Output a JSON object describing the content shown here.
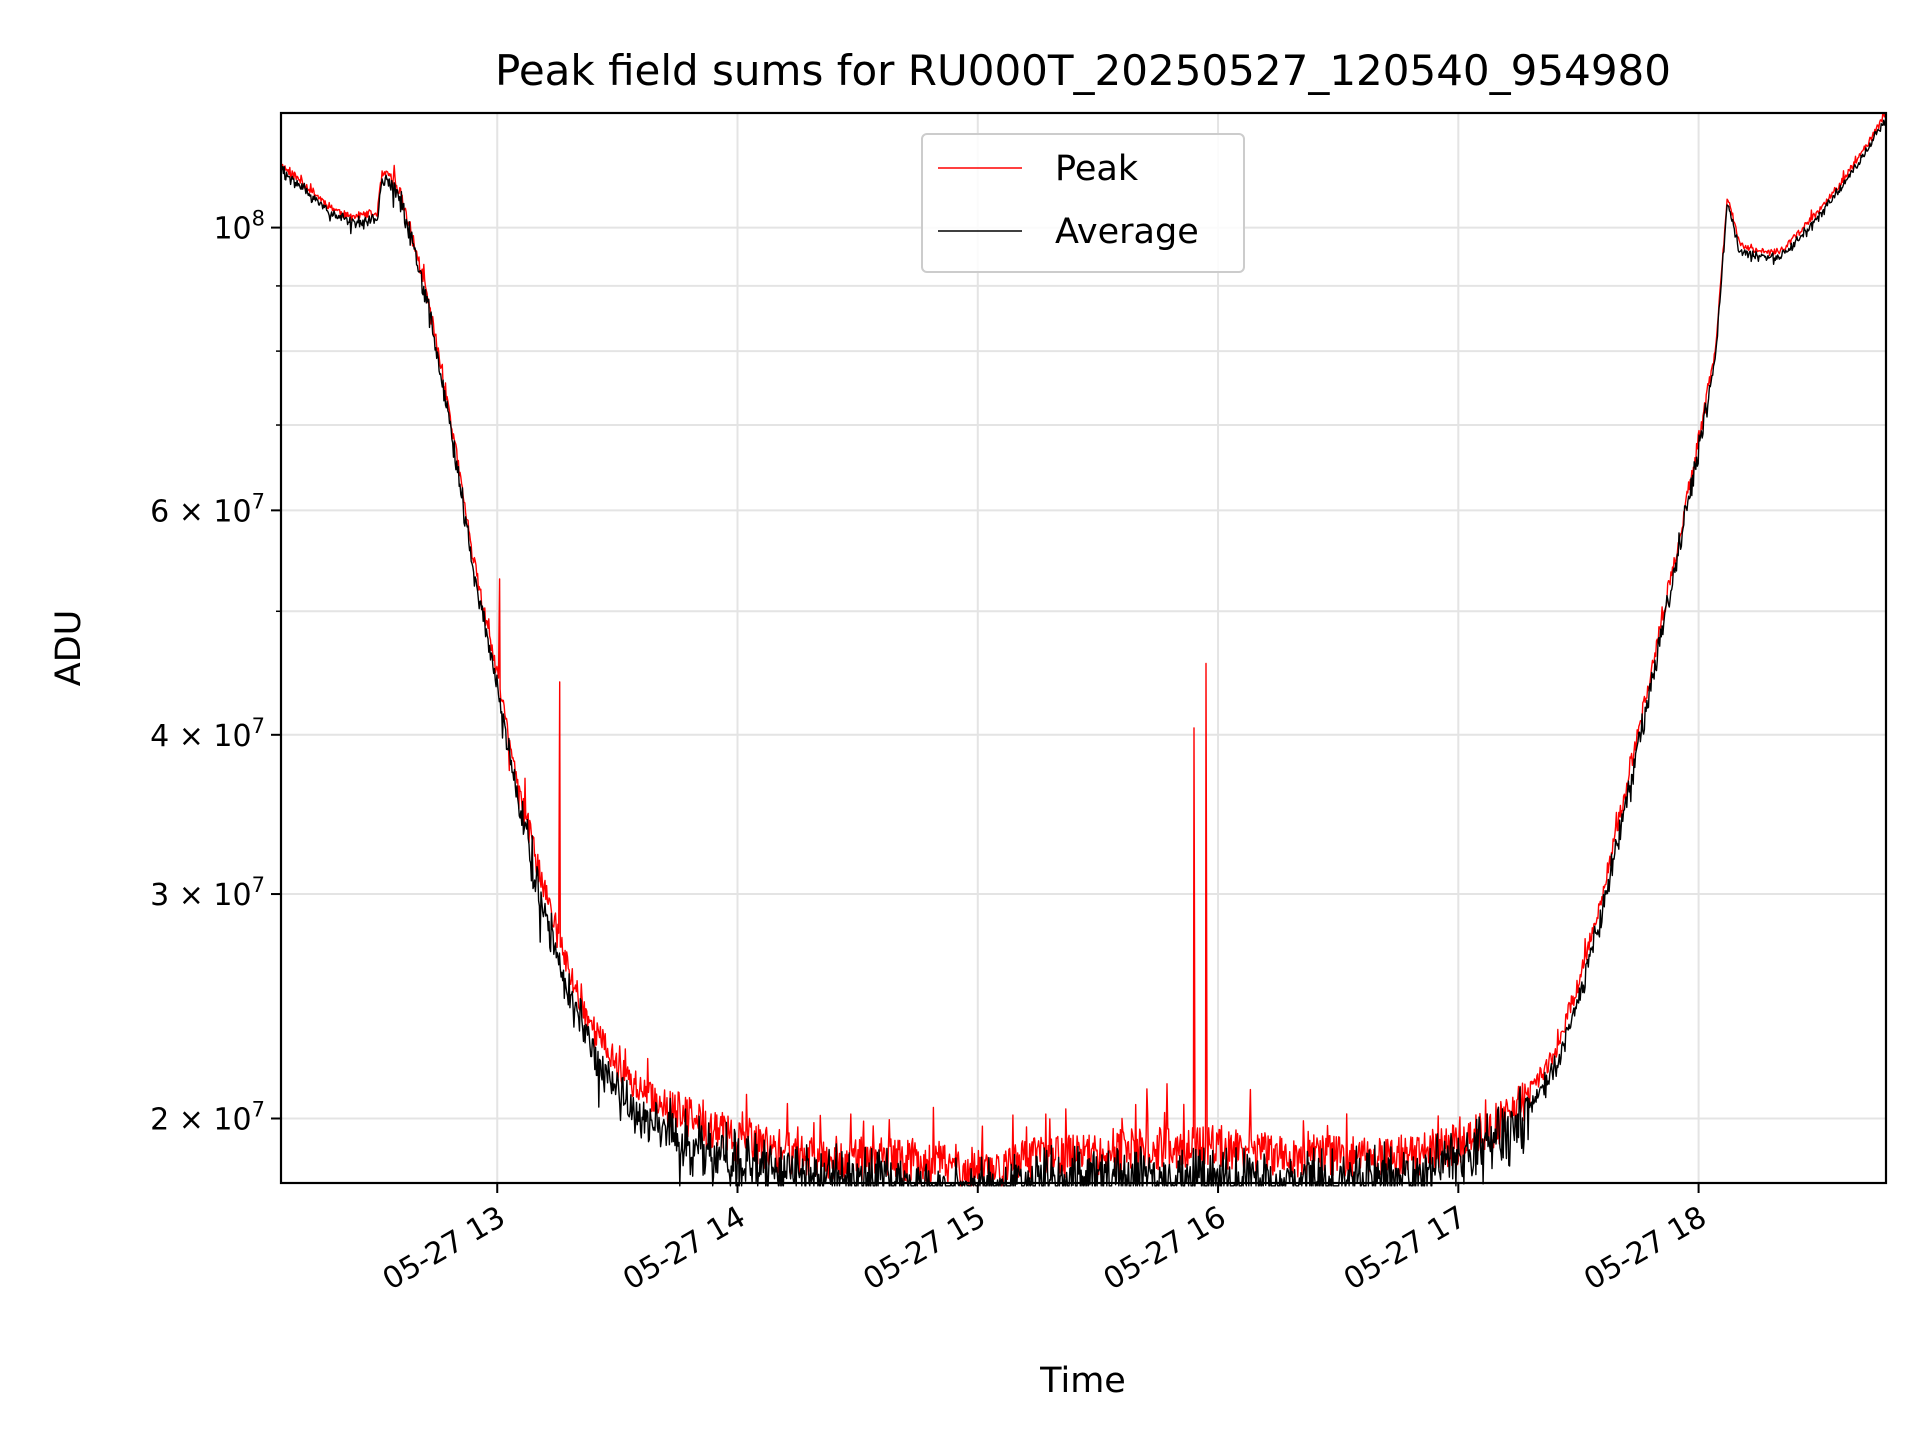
{
  "chart_data": {
    "type": "line",
    "title": "Peak field sums for RU000T_20250527_120540_954980",
    "xlabel": "Time",
    "ylabel": "ADU",
    "yscale": "log",
    "xlim": [
      12.1,
      18.78
    ],
    "ylim": [
      17800000,
      123000000
    ],
    "grid": true,
    "legend_position": "top-center",
    "x_ticks": [
      {
        "value": 13,
        "label": "05-27 13"
      },
      {
        "value": 14,
        "label": "05-27 14"
      },
      {
        "value": 15,
        "label": "05-27 15"
      },
      {
        "value": 16,
        "label": "05-27 16"
      },
      {
        "value": 17,
        "label": "05-27 17"
      },
      {
        "value": 18,
        "label": "05-27 18"
      }
    ],
    "y_ticks": [
      {
        "value": 100000000,
        "base": "10",
        "exp": "8"
      },
      {
        "value": 60000000,
        "base": "6 × 10",
        "exp": "7"
      },
      {
        "value": 40000000,
        "base": "4 × 10",
        "exp": "7"
      },
      {
        "value": 30000000,
        "base": "3 × 10",
        "exp": "7"
      },
      {
        "value": 20000000,
        "base": "2 × 10",
        "exp": "7"
      }
    ],
    "y_minor_ticks": [
      50000000,
      70000000,
      80000000,
      90000000
    ],
    "series": [
      {
        "name": "Peak",
        "color": "#ff0000",
        "noise": 0.04,
        "spikes": [
          [
            13.01,
            53000000
          ],
          [
            13.05,
            37500000
          ],
          [
            13.09,
            35000000
          ],
          [
            13.26,
            44000000
          ],
          [
            13.35,
            25500000
          ],
          [
            13.72,
            21000000
          ],
          [
            14.05,
            20000000
          ],
          [
            15.9,
            40500000
          ],
          [
            15.95,
            45500000
          ],
          [
            17.28,
            21000000
          ]
        ]
      },
      {
        "name": "Average",
        "color": "#000000",
        "noise": 0.055,
        "spikes": []
      }
    ],
    "baseline": {
      "x": [
        12.1,
        12.2,
        12.3,
        12.38,
        12.5,
        12.52,
        12.55,
        12.6,
        12.7,
        12.8,
        12.9,
        13.0,
        13.1,
        13.2,
        13.3,
        13.4,
        13.5,
        13.6,
        13.8,
        14.0,
        14.2,
        14.5,
        14.8,
        15.0,
        15.1,
        15.3,
        15.5,
        15.7,
        16.0,
        16.3,
        16.6,
        16.8,
        17.0,
        17.1,
        17.2,
        17.3,
        17.4,
        17.5,
        17.6,
        17.7,
        17.8,
        17.9,
        18.0,
        18.07,
        18.12,
        18.17,
        18.2,
        18.3,
        18.35,
        18.5,
        18.6,
        18.7,
        18.78
      ],
      "peak": [
        112000000,
        108000000,
        104000000,
        102000000,
        102500000,
        110000000,
        110000000,
        106000000,
        90000000,
        72000000,
        55000000,
        44500000,
        35500000,
        30000000,
        26000000,
        23500000,
        22000000,
        21000000,
        20000000,
        19200000,
        18800000,
        18600000,
        18500000,
        18300000,
        18300000,
        18700000,
        18800000,
        18900000,
        19000000,
        18700000,
        18600000,
        18700000,
        19100000,
        19500000,
        20000000,
        21000000,
        22500000,
        25500000,
        30000000,
        36500000,
        44500000,
        55000000,
        68000000,
        80000000,
        106000000,
        97000000,
        96500000,
        95500000,
        96000000,
        103000000,
        109000000,
        116000000,
        123000000
      ],
      "average": [
        111000000,
        107000000,
        103000000,
        101000000,
        101500000,
        109000000,
        109000000,
        105000000,
        89000000,
        71000000,
        54000000,
        43500000,
        34500000,
        29000000,
        25000000,
        22500000,
        21000000,
        20000000,
        19200000,
        18500000,
        18100000,
        17900000,
        17700000,
        17500000,
        17600000,
        17900000,
        17900000,
        17900000,
        17800000,
        17800000,
        17900000,
        18100000,
        18500000,
        18900000,
        19400000,
        20300000,
        21800000,
        24700000,
        29200000,
        35500000,
        43500000,
        54000000,
        67000000,
        79000000,
        105000000,
        96000000,
        95500000,
        94500000,
        95000000,
        102000000,
        108000000,
        115000000,
        122000000
      ]
    }
  }
}
